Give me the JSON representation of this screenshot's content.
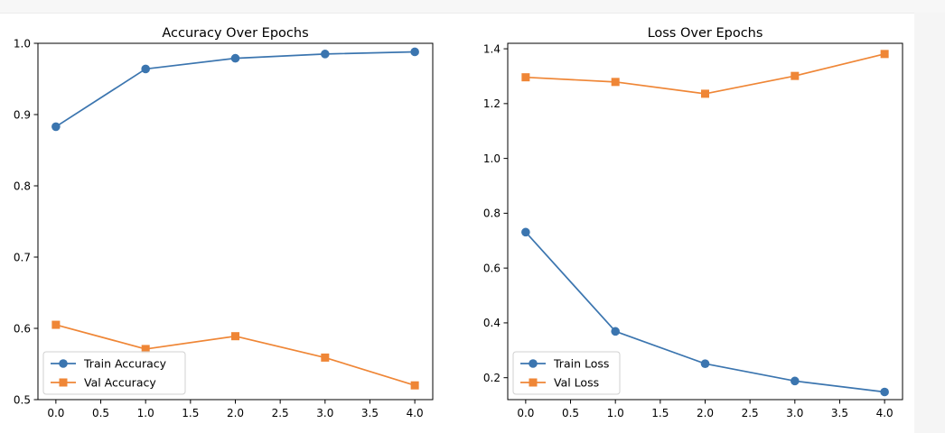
{
  "colors": {
    "train": "#3b75af",
    "val": "#ef8636",
    "background": "#ffffff",
    "frame": "#000000"
  },
  "chart_data": [
    {
      "type": "line",
      "title": "Accuracy Over Epochs",
      "xlabel": "",
      "ylabel": "",
      "xlim": [
        -0.2,
        4.2
      ],
      "ylim": [
        0.5,
        1.0
      ],
      "xticks": [
        0.0,
        0.5,
        1.0,
        1.5,
        2.0,
        2.5,
        3.0,
        3.5,
        4.0
      ],
      "xtick_labels": [
        "0.0",
        "0.5",
        "1.0",
        "1.5",
        "2.0",
        "2.5",
        "3.0",
        "3.5",
        "4.0"
      ],
      "yticks": [
        0.5,
        0.6,
        0.7,
        0.8,
        0.9,
        1.0
      ],
      "ytick_labels": [
        "0.5",
        "0.6",
        "0.7",
        "0.8",
        "0.9",
        "1.0"
      ],
      "grid": false,
      "legend": "lower-left",
      "x": [
        0,
        1,
        2,
        3,
        4
      ],
      "series": [
        {
          "name": "Train Accuracy",
          "values": [
            0.883,
            0.964,
            0.979,
            0.985,
            0.988
          ],
          "marker": "circle",
          "color": "#3b75af"
        },
        {
          "name": "Val Accuracy",
          "values": [
            0.605,
            0.571,
            0.589,
            0.559,
            0.52
          ],
          "marker": "square",
          "color": "#ef8636"
        }
      ]
    },
    {
      "type": "line",
      "title": "Loss Over Epochs",
      "xlabel": "",
      "ylabel": "",
      "xlim": [
        -0.2,
        4.2
      ],
      "ylim": [
        0.12,
        1.42
      ],
      "xticks": [
        0.0,
        0.5,
        1.0,
        1.5,
        2.0,
        2.5,
        3.0,
        3.5,
        4.0
      ],
      "xtick_labels": [
        "0.0",
        "0.5",
        "1.0",
        "1.5",
        "2.0",
        "2.5",
        "3.0",
        "3.5",
        "4.0"
      ],
      "yticks": [
        0.2,
        0.4,
        0.6,
        0.8,
        1.0,
        1.2,
        1.4
      ],
      "ytick_labels": [
        "0.2",
        "0.4",
        "0.6",
        "0.8",
        "1.0",
        "1.2",
        "1.4"
      ],
      "grid": false,
      "legend": "lower-left",
      "x": [
        0,
        1,
        2,
        3,
        4
      ],
      "series": [
        {
          "name": "Train Loss",
          "values": [
            0.731,
            0.369,
            0.251,
            0.188,
            0.148
          ],
          "marker": "circle",
          "color": "#3b75af"
        },
        {
          "name": "Val Loss",
          "values": [
            1.296,
            1.279,
            1.236,
            1.301,
            1.381
          ],
          "marker": "square",
          "color": "#ef8636"
        }
      ]
    }
  ]
}
